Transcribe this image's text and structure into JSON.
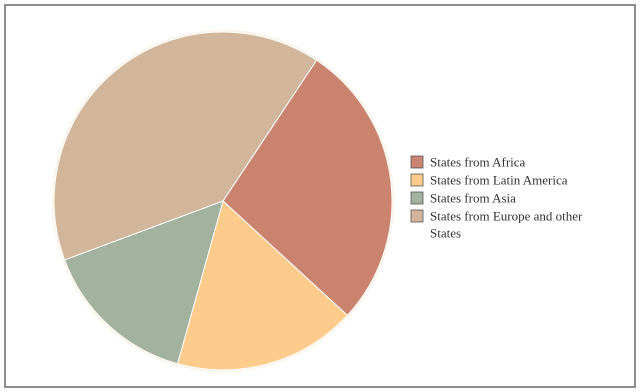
{
  "chart_data": {
    "type": "pie",
    "title": "",
    "categories": [
      "States from Africa",
      "States from Latin America",
      "States from Asia",
      "States from Europe and other States"
    ],
    "values": [
      27.5,
      17.5,
      15.0,
      40.0
    ],
    "colors": [
      "#c9836e",
      "#fdcc8c",
      "#a3b29e",
      "#d2b69b"
    ],
    "legend_position": "right"
  }
}
